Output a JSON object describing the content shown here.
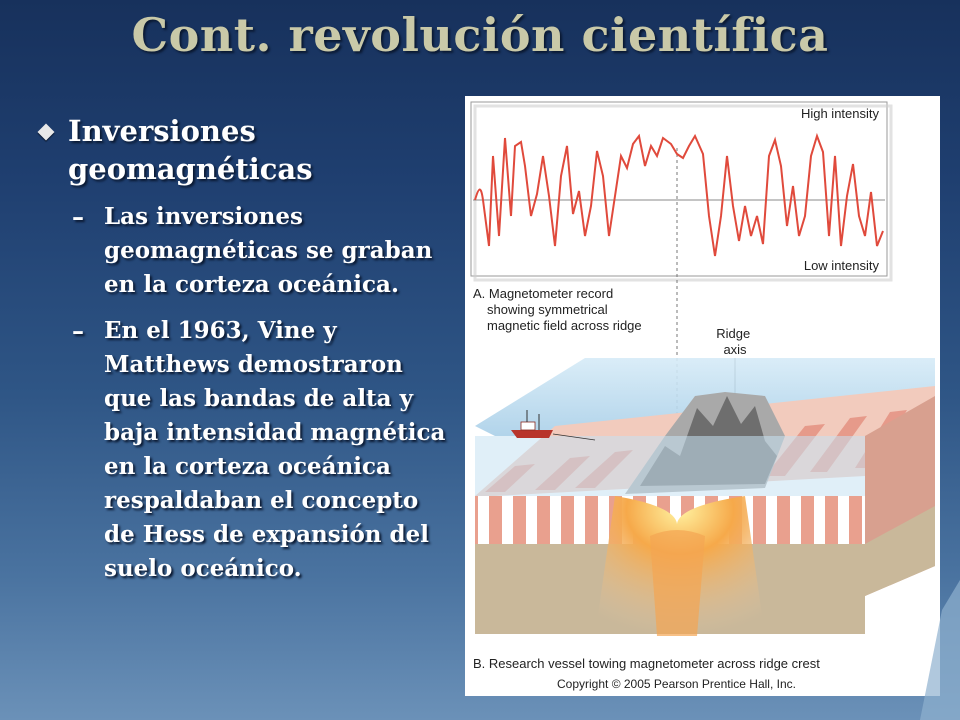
{
  "slide": {
    "title": "Cont. revolución científica",
    "bullet": "Inversiones geomagnéticas",
    "subpoints": [
      "Las inversiones geomagnéticas se graban en la corteza oceánica.",
      "En el 1963, Vine y Matthews demostraron que las bandas de alta y baja intensidad magnética en la corteza oceánica respaldaban el concepto de Hess de expansión del suelo oceánico."
    ],
    "sub_marker": "–"
  },
  "figure": {
    "high_label": "High intensity",
    "low_label": "Low intensity",
    "caption_a": [
      "A. Magnetometer record",
      "showing symmetrical",
      "magnetic field across ridge"
    ],
    "ridge_label": [
      "Ridge",
      "axis"
    ],
    "caption_b": "B. Research vessel towing magnetometer across ridge crest",
    "copyright": "Copyright © 2005 Pearson Prentice Hall, Inc."
  },
  "colors": {
    "title": "#c9c9a8",
    "trace": "#e04a3c",
    "crust_band": "#e9a08e",
    "sediment": "#c9b89a",
    "water": "#b9d8ee"
  }
}
